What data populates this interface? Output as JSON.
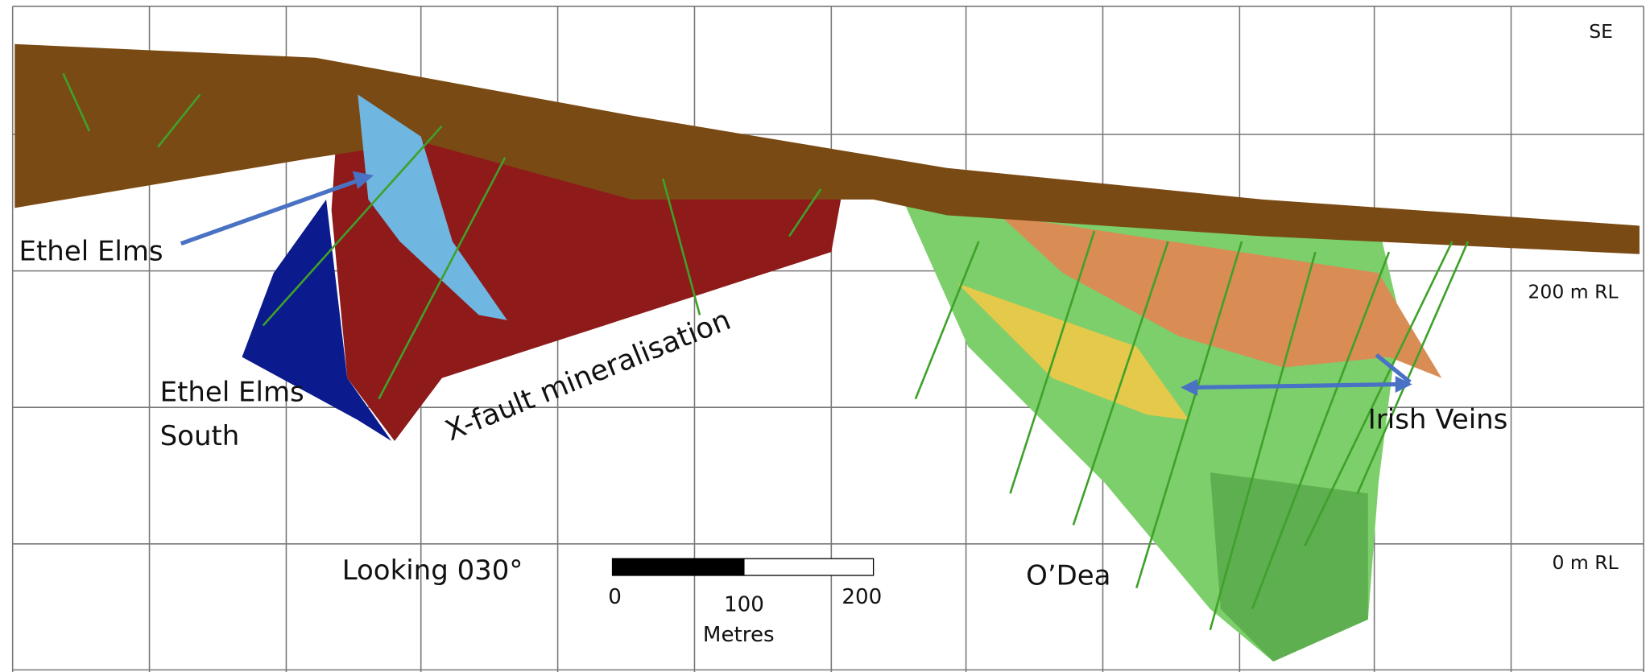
{
  "view": {
    "direction": "SE",
    "levels": [
      "200 m RL",
      "0 m RL"
    ],
    "looking": "Looking 030°"
  },
  "labels": {
    "ethel_elms": "Ethel Elms",
    "ethel_elms_south": [
      "Ethel Elms",
      "South"
    ],
    "x_fault": "X-fault mineralisation",
    "irish_veins": "Irish Veins",
    "odea": "O’Dea"
  },
  "scale_bar": {
    "ticks": [
      "0",
      "100",
      "200"
    ],
    "unit": "Metres"
  }
}
